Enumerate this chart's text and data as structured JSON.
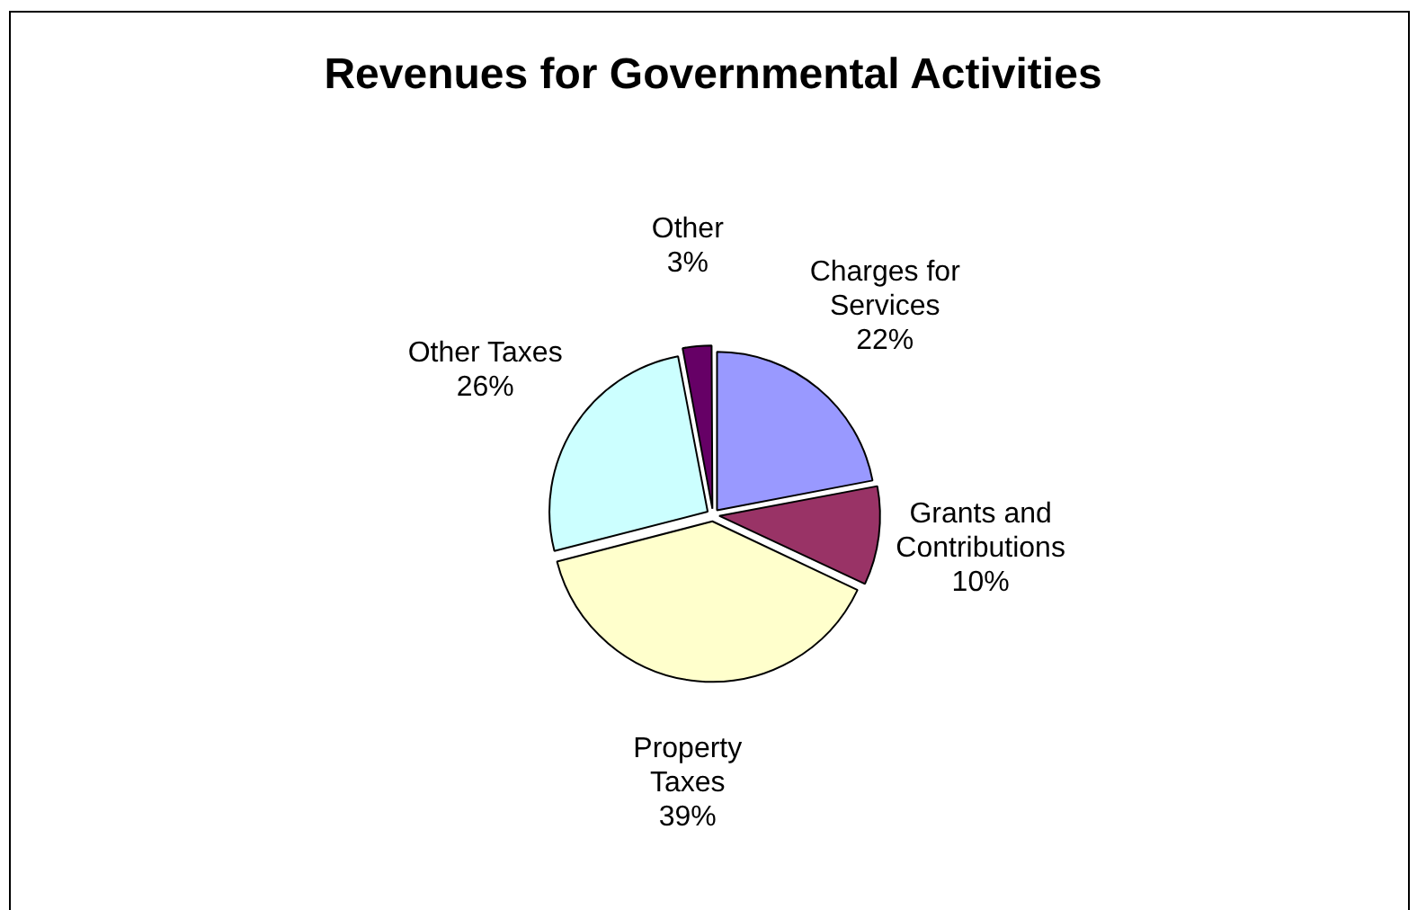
{
  "chart_data": {
    "type": "pie",
    "title": "Revenues for Governmental Activities",
    "categories": [
      "Charges for Services",
      "Grants and Contributions",
      "Property Taxes",
      "Other Taxes",
      "Other"
    ],
    "values": [
      22,
      10,
      39,
      26,
      3
    ],
    "colors": [
      "#9999ff",
      "#993366",
      "#ffffcc",
      "#ccffff",
      "#660066"
    ],
    "value_labels": [
      "22%",
      "10%",
      "39%",
      "26%",
      "3%"
    ],
    "legend": false
  }
}
